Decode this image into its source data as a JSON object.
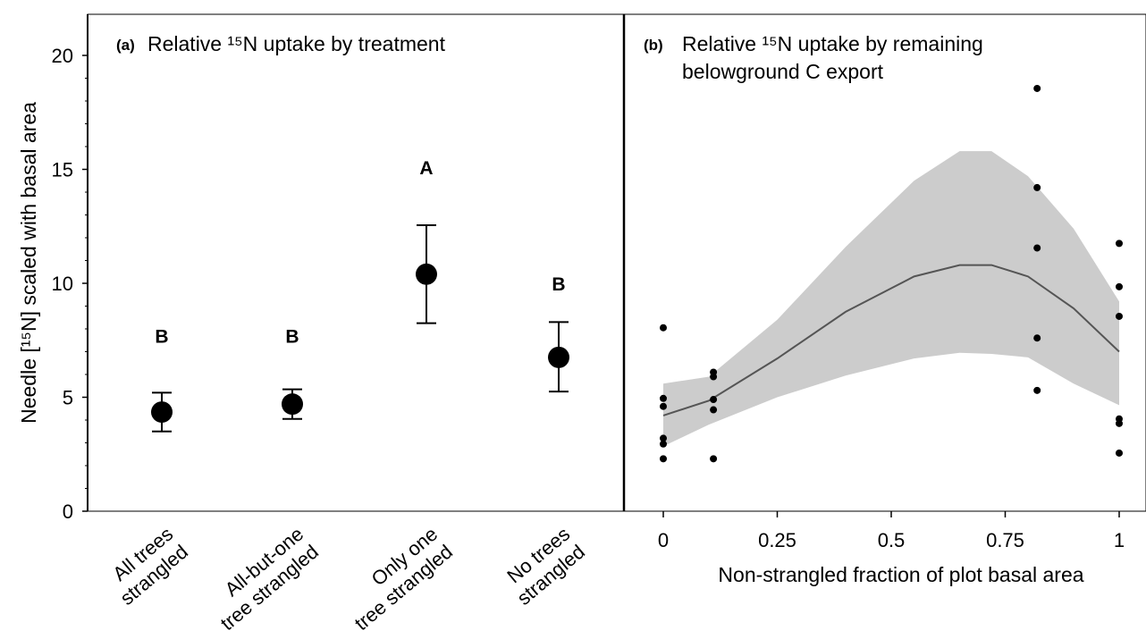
{
  "chart_data": [
    {
      "type": "scatter",
      "panel": "(a)",
      "title": "Relative ¹⁵N uptake by treatment",
      "ylabel": "Needle [¹⁵N] scaled with basal area",
      "ylim": [
        0,
        21
      ],
      "yticks": [
        0,
        5,
        10,
        15,
        20
      ],
      "categories": [
        [
          "All trees",
          "strangled"
        ],
        [
          "All-but-one",
          "tree strangled"
        ],
        [
          "Only one",
          "tree strangled"
        ],
        [
          "No trees",
          "strangled"
        ]
      ],
      "values": [
        4.35,
        4.7,
        10.4,
        6.75
      ],
      "error_low": [
        3.5,
        4.05,
        8.25,
        5.25
      ],
      "error_high": [
        5.2,
        5.35,
        12.55,
        8.3
      ],
      "group_letters": [
        "B",
        "B",
        "A",
        "B"
      ],
      "group_letter_y": [
        7.7,
        7.7,
        15.1,
        10.0
      ]
    },
    {
      "type": "scatter",
      "panel": "(b)",
      "title_lines": [
        "Relative ¹⁵N uptake by remaining",
        "belowground C export"
      ],
      "xlabel": "Non-strangled fraction of plot basal area",
      "xlim": [
        0,
        1.02
      ],
      "xticks": [
        "0",
        "0.25",
        "0.5",
        "0.75",
        "1"
      ],
      "xtick_values": [
        0,
        0.25,
        0.5,
        0.75,
        1
      ],
      "points": [
        [
          0,
          8.05
        ],
        [
          0,
          4.95
        ],
        [
          0,
          4.6
        ],
        [
          0,
          3.2
        ],
        [
          0,
          2.95
        ],
        [
          0,
          2.3
        ],
        [
          0.11,
          6.1
        ],
        [
          0.11,
          5.9
        ],
        [
          0.11,
          4.9
        ],
        [
          0.11,
          4.45
        ],
        [
          0.11,
          2.3
        ],
        [
          0.82,
          18.55
        ],
        [
          0.82,
          14.2
        ],
        [
          0.82,
          11.55
        ],
        [
          0.82,
          7.6
        ],
        [
          0.82,
          5.3
        ],
        [
          1,
          11.75
        ],
        [
          1,
          9.85
        ],
        [
          1,
          8.55
        ],
        [
          1,
          4.05
        ],
        [
          1,
          3.85
        ],
        [
          1,
          2.55
        ]
      ],
      "fit": {
        "x": [
          0,
          0.1,
          0.25,
          0.4,
          0.55,
          0.65,
          0.72,
          0.8,
          0.9,
          1
        ],
        "y": [
          4.2,
          4.85,
          6.7,
          8.75,
          10.3,
          10.8,
          10.8,
          10.3,
          8.9,
          7.0
        ],
        "upper": [
          5.6,
          5.9,
          8.4,
          11.6,
          14.5,
          15.8,
          15.8,
          14.7,
          12.4,
          9.2
        ],
        "lower": [
          2.85,
          3.8,
          5.0,
          5.95,
          6.7,
          6.95,
          6.9,
          6.75,
          5.6,
          4.65
        ]
      }
    }
  ]
}
